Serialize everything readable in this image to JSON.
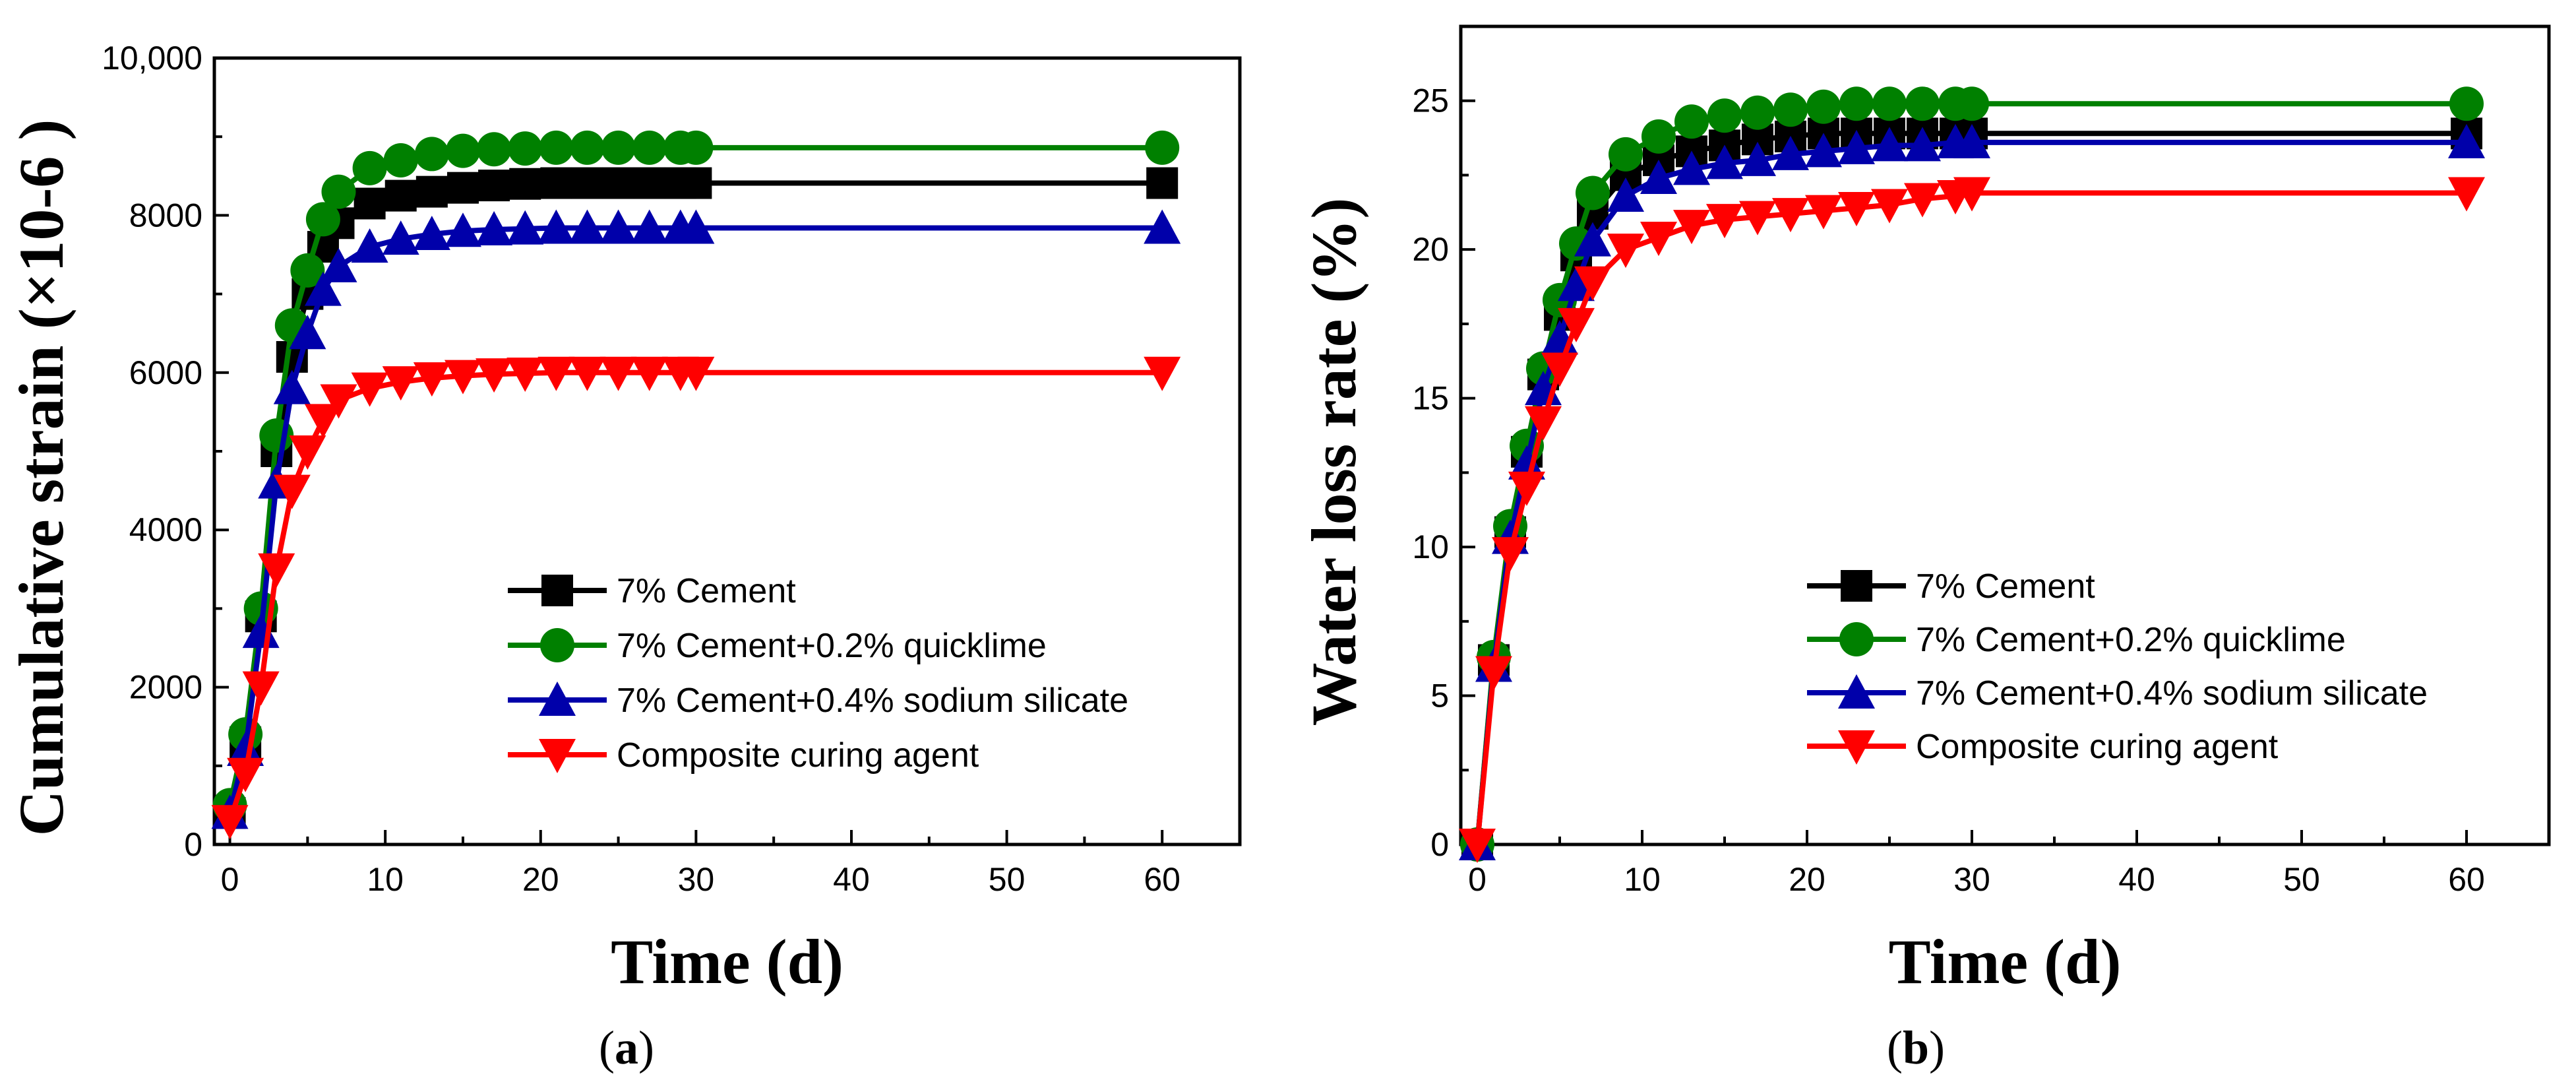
{
  "chart_data": [
    {
      "id": "a",
      "type": "line",
      "caption_letter": "a",
      "xlabel": "Time (d)",
      "ylabel": "Cumulative  strain (×10-6 )",
      "xlim": [
        -1,
        65
      ],
      "ylim": [
        0,
        10000
      ],
      "xticks": [
        0,
        10,
        20,
        30,
        40,
        50,
        60
      ],
      "yticks": [
        0,
        2000,
        4000,
        6000,
        8000,
        10000
      ],
      "ytick_labels": [
        "0",
        "2000",
        "4000",
        "6000",
        "8000",
        "10,000"
      ],
      "legend_position": "lower-right",
      "series": [
        {
          "name": "7% Cement",
          "color": "#000000",
          "marker": "square",
          "x": [
            0,
            1,
            2,
            3,
            4,
            5,
            6,
            7,
            9,
            11,
            13,
            15,
            17,
            19,
            21,
            23,
            25,
            27,
            29,
            30,
            60
          ],
          "y": [
            400,
            1300,
            2900,
            5000,
            6200,
            7000,
            7600,
            7900,
            8150,
            8250,
            8300,
            8350,
            8380,
            8400,
            8410,
            8410,
            8410,
            8410,
            8410,
            8410,
            8410
          ]
        },
        {
          "name": "7% Cement+0.2% quicklime",
          "color": "#008000",
          "marker": "circle",
          "x": [
            0,
            1,
            2,
            3,
            4,
            5,
            6,
            7,
            9,
            11,
            13,
            15,
            17,
            19,
            21,
            23,
            25,
            27,
            29,
            30,
            60
          ],
          "y": [
            500,
            1400,
            3000,
            5200,
            6600,
            7300,
            7950,
            8300,
            8600,
            8700,
            8780,
            8820,
            8840,
            8850,
            8860,
            8860,
            8860,
            8860,
            8860,
            8860,
            8860
          ]
        },
        {
          "name": "7% Cement+0.4% sodium silicate",
          "color": "#0000aa",
          "marker": "triangle-up",
          "x": [
            0,
            1,
            2,
            3,
            4,
            5,
            6,
            7,
            9,
            11,
            13,
            15,
            17,
            19,
            21,
            23,
            25,
            27,
            29,
            30,
            60
          ],
          "y": [
            400,
            1200,
            2700,
            4600,
            5800,
            6500,
            7050,
            7350,
            7600,
            7700,
            7760,
            7800,
            7820,
            7830,
            7840,
            7840,
            7840,
            7840,
            7840,
            7840,
            7840
          ]
        },
        {
          "name": "Composite curing agent",
          "color": "#ff0000",
          "marker": "triangle-down",
          "x": [
            0,
            1,
            2,
            3,
            4,
            5,
            6,
            7,
            9,
            11,
            13,
            15,
            17,
            19,
            21,
            23,
            25,
            27,
            29,
            30,
            60
          ],
          "y": [
            300,
            900,
            2000,
            3500,
            4500,
            5000,
            5400,
            5650,
            5800,
            5880,
            5930,
            5960,
            5980,
            5990,
            6000,
            6000,
            6000,
            6000,
            6000,
            6000,
            6000
          ]
        }
      ]
    },
    {
      "id": "b",
      "type": "line",
      "caption_letter": "b",
      "xlabel": "Time (d)",
      "ylabel": "Water loss rate (%)",
      "xlim": [
        -1,
        65
      ],
      "ylim": [
        0,
        27.5
      ],
      "xticks": [
        0,
        10,
        20,
        30,
        40,
        50,
        60
      ],
      "yticks": [
        0,
        5,
        10,
        15,
        20,
        25
      ],
      "ytick_labels": [
        "0",
        "5",
        "10",
        "15",
        "20",
        "25"
      ],
      "legend_position": "lower-right",
      "series": [
        {
          "name": "7% Cement",
          "color": "#000000",
          "marker": "square",
          "x": [
            0,
            1,
            2,
            3,
            4,
            5,
            6,
            7,
            9,
            11,
            13,
            15,
            17,
            19,
            21,
            23,
            25,
            27,
            29,
            30,
            60
          ],
          "y": [
            0,
            6.2,
            10.5,
            13.2,
            15.8,
            17.8,
            19.8,
            21.2,
            22.5,
            23.0,
            23.3,
            23.5,
            23.7,
            23.8,
            23.9,
            23.9,
            23.9,
            23.9,
            23.9,
            23.9,
            23.9
          ]
        },
        {
          "name": "7% Cement+0.2% quicklime",
          "color": "#008000",
          "marker": "circle",
          "x": [
            0,
            1,
            2,
            3,
            4,
            5,
            6,
            7,
            9,
            11,
            13,
            15,
            17,
            19,
            21,
            23,
            25,
            27,
            29,
            30,
            60
          ],
          "y": [
            0,
            6.3,
            10.7,
            13.4,
            16.0,
            18.3,
            20.2,
            21.9,
            23.2,
            23.8,
            24.3,
            24.5,
            24.6,
            24.7,
            24.8,
            24.9,
            24.9,
            24.9,
            24.9,
            24.9,
            24.9
          ]
        },
        {
          "name": "7% Cement+0.4% sodium silicate",
          "color": "#0000aa",
          "marker": "triangle-up",
          "x": [
            0,
            1,
            2,
            3,
            4,
            5,
            6,
            7,
            9,
            11,
            13,
            15,
            17,
            19,
            21,
            23,
            25,
            27,
            29,
            30,
            60
          ],
          "y": [
            0,
            6.0,
            10.3,
            12.8,
            15.3,
            17.0,
            18.8,
            20.3,
            21.8,
            22.4,
            22.7,
            22.9,
            23.0,
            23.2,
            23.3,
            23.4,
            23.5,
            23.5,
            23.6,
            23.6,
            23.6
          ]
        },
        {
          "name": "Composite curing agent",
          "color": "#ff0000",
          "marker": "triangle-down",
          "x": [
            0,
            1,
            2,
            3,
            4,
            5,
            6,
            7,
            9,
            11,
            13,
            15,
            17,
            19,
            21,
            23,
            25,
            27,
            29,
            30,
            60
          ],
          "y": [
            0,
            5.8,
            9.8,
            12.0,
            14.2,
            16.0,
            17.5,
            18.9,
            20.0,
            20.4,
            20.8,
            21.0,
            21.1,
            21.2,
            21.3,
            21.4,
            21.5,
            21.7,
            21.8,
            21.9,
            21.9
          ]
        }
      ]
    }
  ]
}
